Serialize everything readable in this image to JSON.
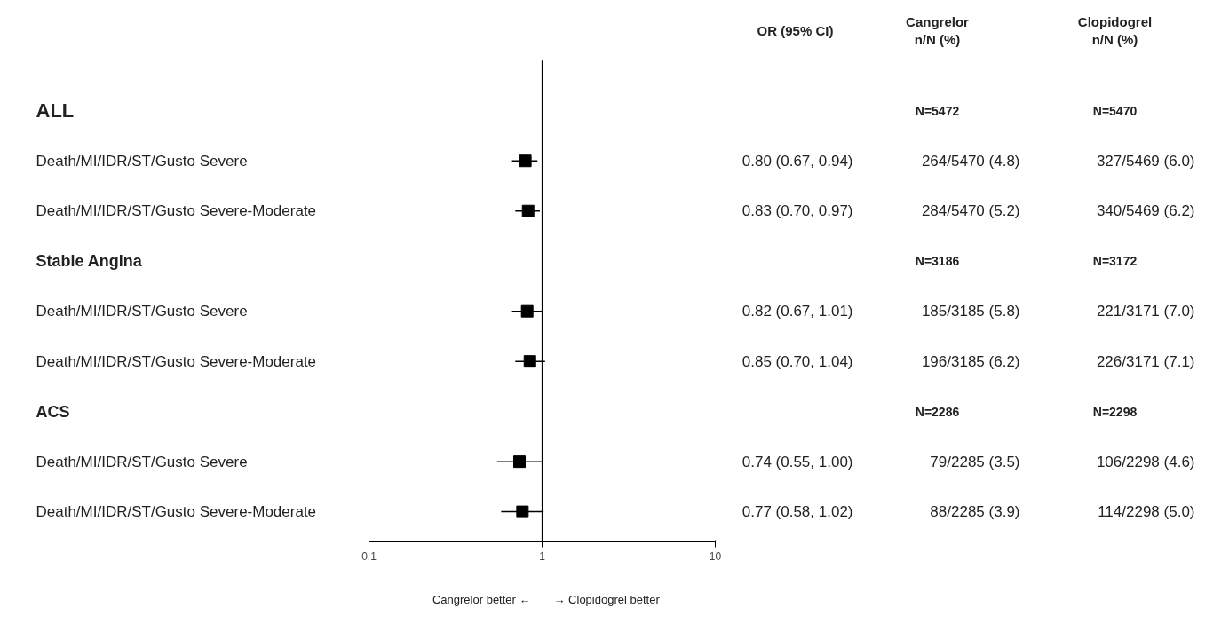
{
  "chart_data": {
    "type": "scatter",
    "orientation": "horizontal",
    "log": "x",
    "marker": "square",
    "grid": false,
    "categories": [
      "ALL",
      "Death/MI/IDR/ST/Gusto Severe",
      "Death/MI/IDR/ST/Gusto Severe-Moderate",
      "Stable Angina",
      "Death/MI/IDR/ST/Gusto Severe",
      "Death/MI/IDR/ST/Gusto Severe-Moderate",
      "ACS",
      "Death/MI/IDR/ST/Gusto Severe",
      "Death/MI/IDR/ST/Gusto Severe-Moderate"
    ],
    "values": [
      null,
      0.8,
      0.83,
      null,
      0.82,
      0.85,
      null,
      0.74,
      0.77
    ],
    "errors": [
      null,
      [
        0.67,
        0.94
      ],
      [
        0.7,
        0.97
      ],
      null,
      [
        0.67,
        1.01
      ],
      [
        0.7,
        1.04
      ],
      null,
      [
        0.55,
        1.0
      ],
      [
        0.58,
        1.02
      ]
    ],
    "value_labels": [
      null,
      "0.80 (0.67, 0.94)",
      "0.83 (0.70, 0.97)",
      null,
      "0.82 (0.67, 1.01)",
      "0.85 (0.70, 1.04)",
      null,
      "0.74 (0.55, 1.00)",
      "0.77 (0.58, 1.02)"
    ],
    "color": "#000000",
    "xlim": [
      0.1,
      10
    ],
    "xticks": [
      0.1,
      1,
      10
    ],
    "ref_lines": [
      {
        "axis": "x",
        "value": 1,
        "color": "#000000"
      }
    ],
    "annotations": [
      "OR (95% CI)",
      "Cangrelor\nn/N (%)",
      "Clopidogrel\nn/N (%)",
      "N=5472",
      "N=5470",
      "264/5470 (4.8)",
      "327/5469 (6.0)",
      "284/5470 (5.2)",
      "340/5469 (6.2)",
      "N=3186",
      "N=3172",
      "185/3185 (5.8)",
      "221/3171 (7.0)",
      "196/3185 (6.2)",
      "226/3171 (7.1)",
      "N=2286",
      "N=2298",
      "79/2285 (3.5)",
      "106/2298 (4.6)",
      "88/2285 (3.9)",
      "114/2298 (5.0)",
      "Cangrelor better ←",
      "→ Clopidogrel better"
    ]
  }
}
